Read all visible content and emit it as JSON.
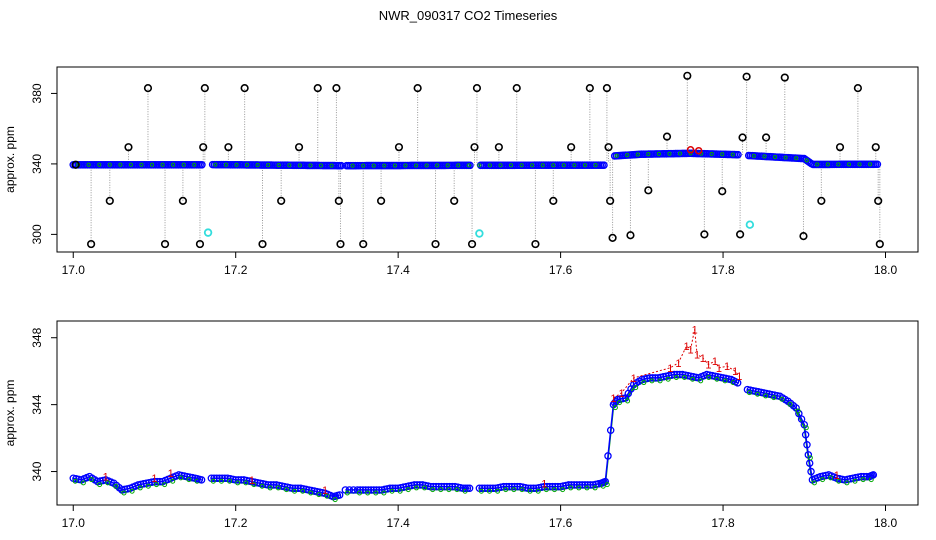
{
  "title": "NWR_090317  CO2 Timeseries",
  "colors": {
    "raw": "#000000",
    "flagged": "#33dddd",
    "series_blue": "#0000ff",
    "series_green": "#00aa00",
    "series_red": "#dd0000",
    "connector": "#999999"
  },
  "chart_data": [
    {
      "type": "scatter",
      "title": "",
      "xlabel": "",
      "ylabel": "approx. ppm",
      "xlim": [
        16.98,
        18.04
      ],
      "ylim": [
        290,
        395
      ],
      "xticks": [
        "17.0",
        "17.2",
        "17.4",
        "17.6",
        "17.8",
        "18.0"
      ],
      "xtick_values": [
        17.0,
        17.2,
        17.4,
        17.6,
        17.8,
        18.0
      ],
      "yticks": [
        "300",
        "340",
        "380"
      ],
      "ytick_values": [
        300,
        340,
        380
      ],
      "grid": false,
      "baseline": [
        [
          17.0,
          339.5
        ],
        [
          17.16,
          339.5
        ],
        [
          17.17,
          339.6
        ],
        [
          17.33,
          339.0
        ],
        [
          17.335,
          339.0
        ],
        [
          17.49,
          339.2
        ],
        [
          17.5,
          339.2
        ],
        [
          17.655,
          339.3
        ],
        [
          17.665,
          344.5
        ],
        [
          17.7,
          345.5
        ],
        [
          17.76,
          346.0
        ],
        [
          17.82,
          345.2
        ],
        [
          17.83,
          344.8
        ],
        [
          17.9,
          343.0
        ],
        [
          17.91,
          339.7
        ],
        [
          17.99,
          339.8
        ]
      ],
      "baseline_gaps": [
        [
          17.16,
          17.17
        ],
        [
          17.33,
          17.335
        ],
        [
          17.49,
          17.5
        ],
        [
          17.655,
          17.665
        ],
        [
          17.82,
          17.83
        ]
      ],
      "red_highlights": [
        [
          17.76,
          348.0
        ],
        [
          17.77,
          347.5
        ]
      ],
      "raw_outliers": [
        [
          17.003,
          339.5
        ],
        [
          17.022,
          294.5
        ],
        [
          17.045,
          319.0
        ],
        [
          17.068,
          349.5
        ],
        [
          17.092,
          383.0
        ],
        [
          17.113,
          294.5
        ],
        [
          17.135,
          319.0
        ],
        [
          17.156,
          294.5
        ],
        [
          17.16,
          349.5
        ],
        [
          17.162,
          383.0
        ],
        [
          17.191,
          349.5
        ],
        [
          17.211,
          383.0
        ],
        [
          17.233,
          294.5
        ],
        [
          17.256,
          319.0
        ],
        [
          17.278,
          349.5
        ],
        [
          17.301,
          383.0
        ],
        [
          17.324,
          383.0
        ],
        [
          17.327,
          319.0
        ],
        [
          17.329,
          294.5
        ],
        [
          17.357,
          294.5
        ],
        [
          17.379,
          319.0
        ],
        [
          17.401,
          349.5
        ],
        [
          17.424,
          383.0
        ],
        [
          17.446,
          294.5
        ],
        [
          17.469,
          319.0
        ],
        [
          17.491,
          294.5
        ],
        [
          17.494,
          349.5
        ],
        [
          17.497,
          383.0
        ],
        [
          17.524,
          349.5
        ],
        [
          17.546,
          383.0
        ],
        [
          17.569,
          294.5
        ],
        [
          17.591,
          319.0
        ],
        [
          17.613,
          349.5
        ],
        [
          17.636,
          383.0
        ],
        [
          17.657,
          383.0
        ],
        [
          17.659,
          349.5
        ],
        [
          17.661,
          319.0
        ],
        [
          17.664,
          298.0
        ],
        [
          17.686,
          299.5
        ],
        [
          17.708,
          325.0
        ],
        [
          17.731,
          355.5
        ],
        [
          17.756,
          390.0
        ],
        [
          17.777,
          300.0
        ],
        [
          17.799,
          324.5
        ],
        [
          17.821,
          300.0
        ],
        [
          17.824,
          355.0
        ],
        [
          17.829,
          389.5
        ],
        [
          17.853,
          355.0
        ],
        [
          17.876,
          389.0
        ],
        [
          17.899,
          299.0
        ],
        [
          17.921,
          319.0
        ],
        [
          17.944,
          349.5
        ],
        [
          17.966,
          383.0
        ],
        [
          17.988,
          349.5
        ],
        [
          17.991,
          319.0
        ],
        [
          17.993,
          294.5
        ]
      ],
      "flagged_points": [
        [
          17.166,
          301.0
        ],
        [
          17.5,
          300.5
        ],
        [
          17.833,
          305.5
        ]
      ]
    },
    {
      "type": "line",
      "title": "",
      "xlabel": "",
      "ylabel": "approx. ppm",
      "xlim": [
        16.98,
        18.04
      ],
      "ylim": [
        338.0,
        349.0
      ],
      "xticks": [
        "17.0",
        "17.2",
        "17.4",
        "17.6",
        "17.8",
        "18.0"
      ],
      "xtick_values": [
        17.0,
        17.2,
        17.4,
        17.6,
        17.8,
        18.0
      ],
      "yticks": [
        "340",
        "344",
        "348"
      ],
      "ytick_values": [
        340,
        344,
        348
      ],
      "grid": false,
      "series": [
        {
          "values": [
            [
              17.0,
              339.6
            ],
            [
              17.01,
              339.5
            ],
            [
              17.02,
              339.7
            ],
            [
              17.03,
              339.4
            ],
            [
              17.04,
              339.5
            ],
            [
              17.05,
              339.3
            ],
            [
              17.06,
              338.9
            ],
            [
              17.07,
              339.0
            ],
            [
              17.08,
              339.2
            ],
            [
              17.09,
              339.3
            ],
            [
              17.1,
              339.4
            ],
            [
              17.11,
              339.4
            ],
            [
              17.12,
              339.6
            ],
            [
              17.13,
              339.8
            ],
            [
              17.14,
              339.7
            ],
            [
              17.15,
              339.6
            ],
            [
              17.158,
              339.5
            ],
            [
              17.17,
              339.6
            ],
            [
              17.18,
              339.6
            ],
            [
              17.19,
              339.6
            ],
            [
              17.2,
              339.5
            ],
            [
              17.21,
              339.5
            ],
            [
              17.22,
              339.4
            ],
            [
              17.23,
              339.3
            ],
            [
              17.24,
              339.2
            ],
            [
              17.25,
              339.2
            ],
            [
              17.26,
              339.1
            ],
            [
              17.27,
              339.0
            ],
            [
              17.28,
              339.0
            ],
            [
              17.29,
              338.9
            ],
            [
              17.3,
              338.8
            ],
            [
              17.31,
              338.7
            ],
            [
              17.32,
              338.5
            ],
            [
              17.328,
              338.6
            ],
            [
              17.335,
              338.9
            ],
            [
              17.35,
              338.9
            ],
            [
              17.36,
              338.9
            ],
            [
              17.37,
              338.9
            ],
            [
              17.38,
              338.9
            ],
            [
              17.39,
              339.0
            ],
            [
              17.4,
              339.0
            ],
            [
              17.41,
              339.1
            ],
            [
              17.42,
              339.2
            ],
            [
              17.43,
              339.2
            ],
            [
              17.44,
              339.1
            ],
            [
              17.45,
              339.1
            ],
            [
              17.46,
              339.1
            ],
            [
              17.47,
              339.1
            ],
            [
              17.48,
              339.0
            ],
            [
              17.488,
              339.0
            ],
            [
              17.5,
              339.0
            ],
            [
              17.51,
              339.0
            ],
            [
              17.52,
              339.0
            ],
            [
              17.53,
              339.1
            ],
            [
              17.54,
              339.1
            ],
            [
              17.55,
              339.1
            ],
            [
              17.56,
              339.0
            ],
            [
              17.57,
              339.0
            ],
            [
              17.58,
              339.1
            ],
            [
              17.59,
              339.1
            ],
            [
              17.6,
              339.1
            ],
            [
              17.61,
              339.2
            ],
            [
              17.62,
              339.2
            ],
            [
              17.63,
              339.2
            ],
            [
              17.64,
              339.2
            ],
            [
              17.65,
              339.3
            ],
            [
              17.655,
              339.4
            ],
            [
              17.665,
              344.0
            ],
            [
              17.67,
              344.3
            ],
            [
              17.68,
              344.4
            ],
            [
              17.69,
              345.2
            ],
            [
              17.7,
              345.5
            ],
            [
              17.71,
              345.6
            ],
            [
              17.72,
              345.6
            ],
            [
              17.73,
              345.7
            ],
            [
              17.74,
              345.8
            ],
            [
              17.75,
              345.8
            ],
            [
              17.76,
              345.7
            ],
            [
              17.77,
              345.6
            ],
            [
              17.78,
              345.8
            ],
            [
              17.79,
              345.7
            ],
            [
              17.8,
              345.6
            ],
            [
              17.81,
              345.5
            ],
            [
              17.818,
              345.3
            ],
            [
              17.83,
              344.9
            ],
            [
              17.84,
              344.8
            ],
            [
              17.85,
              344.7
            ],
            [
              17.86,
              344.6
            ],
            [
              17.87,
              344.5
            ],
            [
              17.88,
              344.2
            ],
            [
              17.89,
              343.8
            ],
            [
              17.9,
              342.8
            ],
            [
              17.905,
              341.0
            ],
            [
              17.91,
              339.5
            ],
            [
              17.92,
              339.7
            ],
            [
              17.93,
              339.8
            ],
            [
              17.94,
              339.6
            ],
            [
              17.95,
              339.5
            ],
            [
              17.96,
              339.6
            ],
            [
              17.97,
              339.7
            ],
            [
              17.98,
              339.7
            ],
            [
              17.985,
              339.8
            ]
          ]
        }
      ],
      "segment_breaks": [
        17.158,
        17.328,
        17.488,
        17.818
      ],
      "red_labels": {
        "text": "1",
        "points": [
          [
            17.665,
            344.4
          ],
          [
            17.675,
            344.7
          ],
          [
            17.69,
            345.6
          ],
          [
            17.735,
            346.2
          ],
          [
            17.745,
            346.5
          ],
          [
            17.755,
            347.5
          ],
          [
            17.76,
            347.3
          ],
          [
            17.765,
            348.5
          ],
          [
            17.768,
            347.0
          ],
          [
            17.775,
            346.8
          ],
          [
            17.782,
            346.4
          ],
          [
            17.79,
            346.6
          ],
          [
            17.795,
            346.2
          ],
          [
            17.805,
            346.3
          ],
          [
            17.815,
            346.0
          ],
          [
            17.82,
            345.7
          ],
          [
            17.04,
            339.7
          ],
          [
            17.1,
            339.6
          ],
          [
            17.12,
            339.9
          ],
          [
            17.22,
            339.5
          ],
          [
            17.31,
            338.9
          ],
          [
            17.58,
            339.3
          ],
          [
            17.94,
            339.8
          ]
        ]
      }
    }
  ]
}
